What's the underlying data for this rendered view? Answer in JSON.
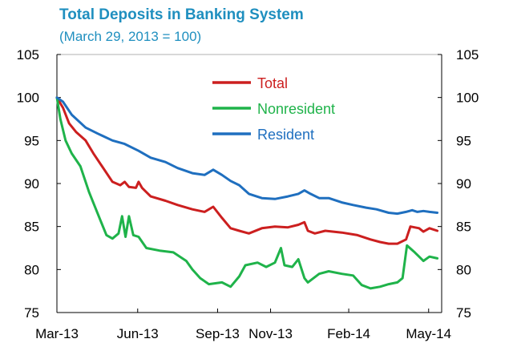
{
  "chart_data": {
    "type": "line",
    "title": "Total Deposits in Banking System",
    "subtitle": "(March 29, 2013 = 100)",
    "xlabel": "",
    "ylabel": "",
    "ylim": [
      75,
      105
    ],
    "yticks": [
      75,
      80,
      85,
      90,
      95,
      100,
      105
    ],
    "x_tick_labels": [
      "Mar-13",
      "Jun-13",
      "Sep-13",
      "Nov-13",
      "Feb-14",
      "May-14"
    ],
    "x_tick_dates": [
      "2013-03-29",
      "2013-06-30",
      "2013-09-30",
      "2013-11-30",
      "2014-02-28",
      "2014-05-31"
    ],
    "x_range": [
      "2013-03-29",
      "2014-06-15"
    ],
    "grid": false,
    "secondary_y_axis_mirror": true,
    "legend_position": "top-center",
    "series": [
      {
        "name": "Total",
        "color": "#cc1f1f",
        "points": [
          [
            "2013-03-29",
            100
          ],
          [
            "2013-04-05",
            98.8
          ],
          [
            "2013-04-12",
            97.0
          ],
          [
            "2013-04-20",
            96.0
          ],
          [
            "2013-05-01",
            95.0
          ],
          [
            "2013-05-10",
            93.5
          ],
          [
            "2013-05-20",
            92.0
          ],
          [
            "2013-06-01",
            90.2
          ],
          [
            "2013-06-10",
            89.8
          ],
          [
            "2013-06-15",
            90.2
          ],
          [
            "2013-06-20",
            89.6
          ],
          [
            "2013-06-28",
            89.5
          ],
          [
            "2013-07-01",
            90.2
          ],
          [
            "2013-07-05",
            89.5
          ],
          [
            "2013-07-15",
            88.5
          ],
          [
            "2013-08-01",
            88.0
          ],
          [
            "2013-08-15",
            87.5
          ],
          [
            "2013-09-01",
            87.0
          ],
          [
            "2013-09-15",
            86.7
          ],
          [
            "2013-09-25",
            87.3
          ],
          [
            "2013-10-05",
            86.0
          ],
          [
            "2013-10-15",
            84.8
          ],
          [
            "2013-10-25",
            84.5
          ],
          [
            "2013-11-05",
            84.2
          ],
          [
            "2013-11-20",
            84.8
          ],
          [
            "2013-12-05",
            85.0
          ],
          [
            "2013-12-20",
            84.9
          ],
          [
            "2014-01-01",
            85.2
          ],
          [
            "2014-01-08",
            85.5
          ],
          [
            "2014-01-12",
            84.5
          ],
          [
            "2014-01-20",
            84.2
          ],
          [
            "2014-02-01",
            84.5
          ],
          [
            "2014-02-20",
            84.3
          ],
          [
            "2014-03-10",
            84.0
          ],
          [
            "2014-03-25",
            83.5
          ],
          [
            "2014-04-05",
            83.2
          ],
          [
            "2014-04-15",
            83.0
          ],
          [
            "2014-04-25",
            83.0
          ],
          [
            "2014-05-05",
            83.5
          ],
          [
            "2014-05-10",
            85.0
          ],
          [
            "2014-05-20",
            84.8
          ],
          [
            "2014-05-25",
            84.4
          ],
          [
            "2014-06-01",
            84.8
          ],
          [
            "2014-06-10",
            84.5
          ]
        ]
      },
      {
        "name": "Nonresident",
        "color": "#1fb34a",
        "points": [
          [
            "2013-03-29",
            100
          ],
          [
            "2013-04-02",
            97.5
          ],
          [
            "2013-04-08",
            95.0
          ],
          [
            "2013-04-15",
            93.5
          ],
          [
            "2013-04-25",
            92.0
          ],
          [
            "2013-05-05",
            89.0
          ],
          [
            "2013-05-15",
            86.5
          ],
          [
            "2013-05-25",
            84.0
          ],
          [
            "2013-06-01",
            83.6
          ],
          [
            "2013-06-08",
            84.2
          ],
          [
            "2013-06-12",
            86.2
          ],
          [
            "2013-06-16",
            83.8
          ],
          [
            "2013-06-20",
            86.2
          ],
          [
            "2013-06-25",
            84.0
          ],
          [
            "2013-07-01",
            83.8
          ],
          [
            "2013-07-10",
            82.5
          ],
          [
            "2013-07-25",
            82.2
          ],
          [
            "2013-08-10",
            82.0
          ],
          [
            "2013-08-25",
            81.0
          ],
          [
            "2013-09-01",
            80.0
          ],
          [
            "2013-09-10",
            79.0
          ],
          [
            "2013-09-20",
            78.3
          ],
          [
            "2013-10-05",
            78.5
          ],
          [
            "2013-10-15",
            78.0
          ],
          [
            "2013-10-25",
            79.2
          ],
          [
            "2013-11-01",
            80.5
          ],
          [
            "2013-11-15",
            80.8
          ],
          [
            "2013-11-25",
            80.3
          ],
          [
            "2013-12-05",
            80.8
          ],
          [
            "2013-12-12",
            82.5
          ],
          [
            "2013-12-16",
            80.5
          ],
          [
            "2013-12-25",
            80.3
          ],
          [
            "2014-01-01",
            81.2
          ],
          [
            "2014-01-08",
            79.0
          ],
          [
            "2014-01-12",
            78.5
          ],
          [
            "2014-01-25",
            79.5
          ],
          [
            "2014-02-05",
            79.8
          ],
          [
            "2014-02-20",
            79.5
          ],
          [
            "2014-03-05",
            79.3
          ],
          [
            "2014-03-15",
            78.2
          ],
          [
            "2014-03-25",
            77.8
          ],
          [
            "2014-04-05",
            78.0
          ],
          [
            "2014-04-15",
            78.3
          ],
          [
            "2014-04-25",
            78.5
          ],
          [
            "2014-05-01",
            79.0
          ],
          [
            "2014-05-06",
            82.8
          ],
          [
            "2014-05-15",
            82.0
          ],
          [
            "2014-05-20",
            81.5
          ],
          [
            "2014-05-25",
            81.0
          ],
          [
            "2014-06-01",
            81.5
          ],
          [
            "2014-06-10",
            81.3
          ]
        ]
      },
      {
        "name": "Resident",
        "color": "#1f6fbf",
        "points": [
          [
            "2013-03-29",
            100
          ],
          [
            "2013-04-05",
            99.5
          ],
          [
            "2013-04-15",
            98.0
          ],
          [
            "2013-05-01",
            96.5
          ],
          [
            "2013-05-15",
            95.8
          ],
          [
            "2013-06-01",
            95.0
          ],
          [
            "2013-06-15",
            94.6
          ],
          [
            "2013-07-01",
            93.8
          ],
          [
            "2013-07-15",
            93.0
          ],
          [
            "2013-08-01",
            92.5
          ],
          [
            "2013-08-15",
            91.8
          ],
          [
            "2013-09-01",
            91.2
          ],
          [
            "2013-09-15",
            91.0
          ],
          [
            "2013-09-25",
            91.6
          ],
          [
            "2013-10-05",
            91.0
          ],
          [
            "2013-10-15",
            90.3
          ],
          [
            "2013-10-25",
            89.8
          ],
          [
            "2013-11-05",
            88.8
          ],
          [
            "2013-11-20",
            88.3
          ],
          [
            "2013-12-05",
            88.2
          ],
          [
            "2013-12-20",
            88.5
          ],
          [
            "2014-01-01",
            88.8
          ],
          [
            "2014-01-08",
            89.2
          ],
          [
            "2014-01-15",
            88.8
          ],
          [
            "2014-01-25",
            88.3
          ],
          [
            "2014-02-05",
            88.3
          ],
          [
            "2014-02-20",
            87.8
          ],
          [
            "2014-03-05",
            87.5
          ],
          [
            "2014-03-20",
            87.2
          ],
          [
            "2014-04-01",
            87.0
          ],
          [
            "2014-04-15",
            86.6
          ],
          [
            "2014-04-25",
            86.5
          ],
          [
            "2014-05-05",
            86.7
          ],
          [
            "2014-05-12",
            86.9
          ],
          [
            "2014-05-18",
            86.7
          ],
          [
            "2014-05-25",
            86.8
          ],
          [
            "2014-06-01",
            86.7
          ],
          [
            "2014-06-10",
            86.6
          ]
        ]
      }
    ]
  }
}
